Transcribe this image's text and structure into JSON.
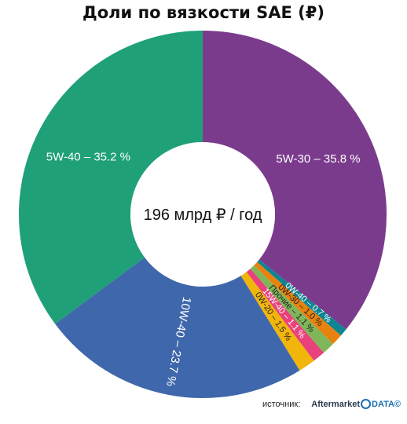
{
  "chart_data": {
    "type": "pie",
    "title": "Доли по вязкости SAE (₽)",
    "center_label": "196 млрд ₽ / год",
    "slices": [
      {
        "label": "5W-30 – 35.8 %",
        "value": 35.8,
        "color": "#7b3b8c"
      },
      {
        "label": "0W-40 – 0.7 %",
        "value": 0.7,
        "color": "#0d8592"
      },
      {
        "label": "0W-30 – 1.0 %",
        "value": 1.0,
        "color": "#e8820e"
      },
      {
        "label": "Прочие – 1.1 %",
        "value": 1.1,
        "color": "#7fb65a"
      },
      {
        "label": "15W-40 – 1.1 %",
        "value": 1.1,
        "color": "#e8417b"
      },
      {
        "label": "0W-20 – 1.5 %",
        "value": 1.5,
        "color": "#f2b50a"
      },
      {
        "label": "10W-40 – 23.7 %",
        "value": 23.7,
        "color": "#3f67ab"
      },
      {
        "label": "5W-40 – 35.2 %",
        "value": 35.2,
        "color": "#1fa078"
      }
    ]
  },
  "source": {
    "label": "источник:",
    "brand": "Aftermarket",
    "brand2": "DATA©"
  }
}
